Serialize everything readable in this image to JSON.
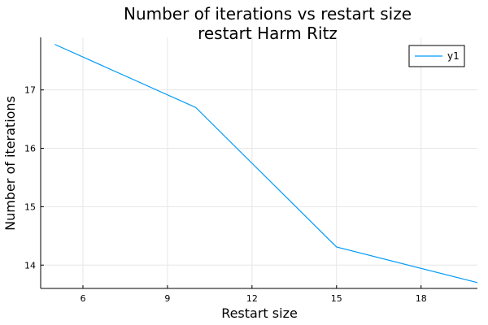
{
  "chart_data": {
    "type": "line",
    "title": "Number of iterations vs restart size",
    "subtitle": "restart Harm Ritz",
    "xlabel": "Restart size",
    "ylabel": "Number of iterations",
    "xlim": [
      4.5,
      20.0
    ],
    "ylim": [
      13.6,
      17.9
    ],
    "xticks": [
      6,
      9,
      12,
      15,
      18
    ],
    "yticks": [
      14,
      15,
      16,
      17
    ],
    "grid": true,
    "legend": "top-right",
    "series": [
      {
        "name": "y1",
        "color": "#009af9",
        "x": [
          5,
          10,
          15,
          20
        ],
        "y": [
          17.78,
          16.7,
          14.31,
          13.7
        ]
      }
    ]
  }
}
